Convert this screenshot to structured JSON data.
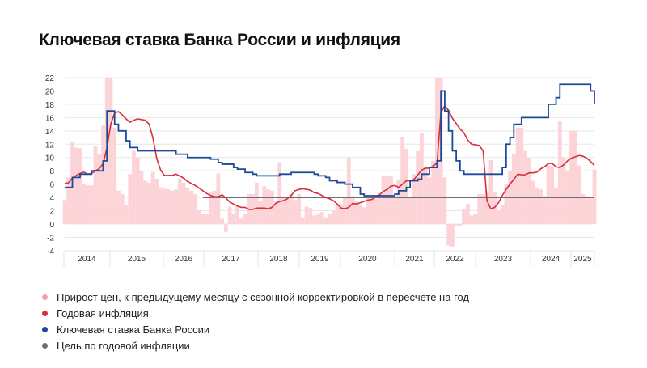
{
  "chart_data": {
    "type": "bar+line",
    "title": "Ключевая ставка Банка России и инфляция",
    "ylim": [
      -4,
      22
    ],
    "yticks": [
      -4,
      -2,
      0,
      2,
      4,
      6,
      8,
      10,
      12,
      14,
      16,
      18,
      20,
      22
    ],
    "xlim": [
      "2014-01",
      "2025-07"
    ],
    "year_labels": [
      "2014",
      "2015",
      "2016",
      "2017",
      "2018",
      "2019",
      "2020",
      "2021",
      "2022",
      "2023",
      "2024",
      "2025"
    ],
    "grid": true,
    "legend_placement": "bottom",
    "colors": {
      "mom_saar": "#fcd3d7",
      "annual": "#d62f3a",
      "key_rate": "#1d4a98",
      "target": "#6b6e73",
      "legend_mom": "#f2a0a8"
    },
    "series": [
      {
        "name": "Прирост цен, к предыдущему месяцу с сезонной корректировкой в пересчете на год",
        "kind": "bar",
        "start": "2014-01",
        "values": [
          3.6,
          7,
          12.3,
          11.5,
          11.4,
          6,
          5.8,
          5.8,
          11.8,
          10.5,
          14.8,
          22,
          22,
          14.5,
          5,
          4.5,
          2.8,
          7.5,
          11,
          10,
          8,
          6.5,
          6.2,
          7.8,
          6.8,
          5.5,
          5.3,
          5.2,
          5,
          5.2,
          6.8,
          6.2,
          5.5,
          5,
          4.5,
          2,
          1.5,
          1.5,
          4.8,
          5,
          7.6,
          0.8,
          -1.2,
          2.6,
          1.6,
          2.6,
          0.8,
          1.6,
          4.5,
          4.5,
          6.2,
          3.5,
          5.7,
          5.2,
          5,
          3.5,
          9.3,
          4,
          3.8,
          4.5,
          3.6,
          4.5,
          1,
          2.6,
          2.4,
          1.3,
          1.5,
          1.8,
          1,
          1.5,
          2,
          3,
          3,
          4,
          10,
          4,
          3.5,
          3,
          2.5,
          4,
          4,
          3.8,
          4.7,
          7.3,
          7.3,
          7.2,
          4,
          6.7,
          13.1,
          11.3,
          4,
          7.5,
          11,
          13.7,
          8.6,
          7,
          9.5,
          22,
          22,
          7,
          -3.2,
          -3.4,
          -0.2,
          -0.3,
          2.3,
          3,
          1.3,
          1.5,
          4.5,
          4.5,
          5,
          9.6,
          4.8,
          2,
          2.8,
          6,
          8,
          10.5,
          14.5,
          14.5,
          11,
          10,
          6.5,
          5.5,
          5.2,
          4.2,
          8.8,
          8.6,
          5.5,
          15.5,
          10,
          8,
          14,
          14,
          8.8,
          4.5,
          4.2,
          4,
          8.2
        ]
      },
      {
        "name": "Годовая инфляция",
        "kind": "line",
        "start": "2014-01",
        "values": [
          6.1,
          6.2,
          6.9,
          7.3,
          7.6,
          7.8,
          7.5,
          7.6,
          8.0,
          8.3,
          9.1,
          11.4,
          15.0,
          16.7,
          16.9,
          16.4,
          15.8,
          15.3,
          15.6,
          15.8,
          15.7,
          15.6,
          15.0,
          12.9,
          9.8,
          8.1,
          7.3,
          7.3,
          7.3,
          7.5,
          7.2,
          6.9,
          6.4,
          6.1,
          5.8,
          5.4,
          5.0,
          4.6,
          4.3,
          4.1,
          4.1,
          4.4,
          3.9,
          3.3,
          3.0,
          2.7,
          2.5,
          2.5,
          2.2,
          2.2,
          2.4,
          2.4,
          2.4,
          2.3,
          2.5,
          3.1,
          3.4,
          3.5,
          3.8,
          4.3,
          5.0,
          5.2,
          5.3,
          5.2,
          5.1,
          4.7,
          4.6,
          4.3,
          4.0,
          3.8,
          3.5,
          3.0,
          2.4,
          2.3,
          2.5,
          3.1,
          3.0,
          3.2,
          3.4,
          3.6,
          3.7,
          4.0,
          4.4,
          4.9,
          5.2,
          5.7,
          5.8,
          5.5,
          6.0,
          6.5,
          6.5,
          6.7,
          7.4,
          8.1,
          8.4,
          8.4,
          8.7,
          9.2,
          16.7,
          17.8,
          17.1,
          15.9,
          15.1,
          14.3,
          13.7,
          12.6,
          12.0,
          11.9,
          11.8,
          11.0,
          3.5,
          2.3,
          2.5,
          3.2,
          4.3,
          5.2,
          6.0,
          6.7,
          7.5,
          7.4,
          7.4,
          7.7,
          7.7,
          7.8,
          8.3,
          8.6,
          9.1,
          9.1,
          8.6,
          8.5,
          8.9,
          9.5,
          9.9,
          10.1,
          10.3,
          10.2,
          9.9,
          9.4,
          8.8
        ]
      },
      {
        "name": "Ключевая ставка Банка России",
        "kind": "step",
        "changes": [
          [
            "2014-01",
            5.5
          ],
          [
            "2014-03",
            7
          ],
          [
            "2014-05",
            7.5
          ],
          [
            "2014-08",
            8
          ],
          [
            "2014-11",
            9.5
          ],
          [
            "2014-12",
            17
          ],
          [
            "2015-02",
            15
          ],
          [
            "2015-03",
            14
          ],
          [
            "2015-05",
            12.5
          ],
          [
            "2015-06",
            11.5
          ],
          [
            "2015-08",
            11
          ],
          [
            "2016-06",
            10.5
          ],
          [
            "2016-09",
            10
          ],
          [
            "2017-03",
            9.75
          ],
          [
            "2017-05",
            9.25
          ],
          [
            "2017-06",
            9
          ],
          [
            "2017-09",
            8.5
          ],
          [
            "2017-10",
            8.25
          ],
          [
            "2017-12",
            7.75
          ],
          [
            "2018-02",
            7.5
          ],
          [
            "2018-03",
            7.25
          ],
          [
            "2018-09",
            7.5
          ],
          [
            "2018-12",
            7.75
          ],
          [
            "2019-06",
            7.5
          ],
          [
            "2019-07",
            7.25
          ],
          [
            "2019-09",
            7
          ],
          [
            "2019-10",
            6.5
          ],
          [
            "2019-12",
            6.25
          ],
          [
            "2020-02",
            6
          ],
          [
            "2020-04",
            5.5
          ],
          [
            "2020-06",
            4.5
          ],
          [
            "2020-07",
            4.25
          ],
          [
            "2021-03",
            4.5
          ],
          [
            "2021-04",
            5
          ],
          [
            "2021-06",
            5.5
          ],
          [
            "2021-07",
            6.5
          ],
          [
            "2021-09",
            6.75
          ],
          [
            "2021-10",
            7.5
          ],
          [
            "2021-12",
            8.5
          ],
          [
            "2022-02",
            9.5
          ],
          [
            "2022-03",
            20
          ],
          [
            "2022-04",
            17
          ],
          [
            "2022-05",
            14
          ],
          [
            "2022-06",
            11
          ],
          [
            "2022-07",
            9.5
          ],
          [
            "2022-08",
            8
          ],
          [
            "2022-09",
            7.5
          ],
          [
            "2023-07",
            8.5
          ],
          [
            "2023-08",
            12
          ],
          [
            "2023-09",
            13
          ],
          [
            "2023-10",
            15
          ],
          [
            "2023-12",
            16
          ],
          [
            "2024-07",
            18
          ],
          [
            "2024-09",
            19
          ],
          [
            "2024-10",
            21
          ],
          [
            "2025-06",
            20
          ],
          [
            "2025-07",
            18
          ]
        ]
      },
      {
        "name": "Цель по годовой инфляции",
        "kind": "hline",
        "start": "2017-01",
        "value": 4
      }
    ]
  }
}
